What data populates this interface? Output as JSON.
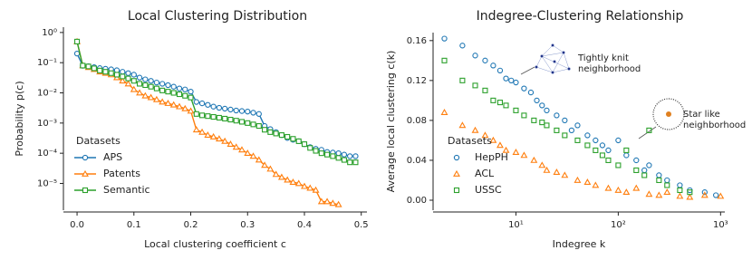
{
  "chart_data": [
    {
      "type": "line",
      "title": "Local Clustering Distribution",
      "x_label": "Local clustering coefficient c",
      "y_label": "Probability p(c)",
      "yscale": "log",
      "xlim": [
        -0.024,
        0.51
      ],
      "ylim": [
        1.3e-06,
        1.5
      ],
      "xticks": [
        {
          "value": 0,
          "label": "0.0"
        },
        0.1,
        0.2,
        0.3,
        0.4,
        0.5
      ],
      "yticks": [
        {
          "value": 1,
          "label": "10⁰"
        },
        {
          "value": 0.1,
          "label": "10⁻¹"
        },
        {
          "value": 0.01,
          "label": "10⁻²"
        },
        {
          "value": 0.001,
          "label": "10⁻³"
        },
        {
          "value": 0.0001,
          "label": "10⁻⁴"
        },
        {
          "value": 1e-05,
          "label": "10⁻⁵"
        }
      ],
      "legend_title": "Datasets",
      "legend": "lower left",
      "x": [
        0,
        0.01,
        0.02,
        0.03,
        0.04,
        0.05,
        0.06,
        0.07,
        0.08,
        0.09,
        0.1,
        0.11,
        0.12,
        0.13,
        0.14,
        0.15,
        0.16,
        0.17,
        0.18,
        0.19,
        0.2,
        0.21,
        0.22,
        0.23,
        0.24,
        0.25,
        0.26,
        0.27,
        0.28,
        0.29,
        0.3,
        0.31,
        0.32,
        0.33,
        0.34,
        0.35,
        0.36,
        0.37,
        0.38,
        0.39,
        0.4,
        0.41,
        0.42,
        0.43,
        0.44,
        0.45,
        0.46,
        0.47,
        0.48,
        0.49
      ],
      "series": [
        {
          "name": "APS",
          "color": "#1f77b4",
          "marker": "circle",
          "values": [
            0.2,
            0.079,
            0.076,
            0.071,
            0.066,
            0.063,
            0.06,
            0.056,
            0.05,
            0.045,
            0.04,
            0.032,
            0.028,
            0.025,
            0.022,
            0.02,
            0.018,
            0.016,
            0.014,
            0.013,
            0.011,
            0.005,
            0.0045,
            0.004,
            0.0035,
            0.0032,
            0.003,
            0.0028,
            0.0026,
            0.0025,
            0.0024,
            0.0022,
            0.002,
            0.0008,
            0.00063,
            0.0005,
            0.0004,
            0.00032,
            0.00028,
            0.00025,
            0.0002,
            0.00016,
            0.00014,
            0.00013,
            0.00011,
            0.000105,
            0.0001,
            9e-05,
            8e-05,
            8e-05
          ]
        },
        {
          "name": "Patents",
          "color": "#ff7f0e",
          "marker": "triangle",
          "values": [
            0.5,
            0.08,
            0.07,
            0.06,
            0.05,
            0.045,
            0.04,
            0.032,
            0.025,
            0.02,
            0.013,
            0.01,
            0.008,
            0.007,
            0.006,
            0.005,
            0.0045,
            0.004,
            0.0035,
            0.003,
            0.0025,
            0.0006,
            0.0005,
            0.0004,
            0.00035,
            0.0003,
            0.00025,
            0.0002,
            0.00016,
            0.00013,
            0.0001,
            8e-05,
            6e-05,
            4e-05,
            3e-05,
            2e-05,
            1.6e-05,
            1.3e-05,
            1.1e-05,
            1e-05,
            8e-06,
            7e-06,
            6e-06,
            2.5e-06,
            2.5e-06,
            2.2e-06,
            2e-06,
            null,
            null,
            null
          ]
        },
        {
          "name": "Semantic",
          "color": "#2ca02c",
          "marker": "square",
          "values": [
            0.5,
            0.08,
            0.075,
            0.065,
            0.055,
            0.05,
            0.045,
            0.04,
            0.035,
            0.03,
            0.025,
            0.02,
            0.018,
            0.016,
            0.014,
            0.012,
            0.011,
            0.01,
            0.009,
            0.008,
            0.007,
            0.002,
            0.0018,
            0.0017,
            0.0016,
            0.0015,
            0.0014,
            0.0013,
            0.0012,
            0.0011,
            0.001,
            0.0009,
            0.0008,
            0.0006,
            0.0005,
            0.00045,
            0.0004,
            0.00035,
            0.0003,
            0.00025,
            0.0002,
            0.00015,
            0.00012,
            0.0001,
            9e-05,
            8e-05,
            7e-05,
            6e-05,
            5e-05,
            5e-05
          ]
        }
      ]
    },
    {
      "type": "scatter",
      "title": "Indegree-Clustering Relationship",
      "x_label": "Indegree k",
      "y_label": "Average local clustering c(k)",
      "xscale": "log",
      "xlim": [
        1.55,
        1100
      ],
      "ylim": [
        -0.01,
        0.168
      ],
      "xticks": [
        {
          "value": 10,
          "label": "10¹"
        },
        {
          "value": 100,
          "label": "10²"
        },
        {
          "value": 1000,
          "label": "10³"
        }
      ],
      "yticks": [
        {
          "value": 0,
          "label": "0.00"
        },
        {
          "value": 0.04,
          "label": "0.04"
        },
        {
          "value": 0.08,
          "label": "0.08"
        },
        {
          "value": 0.12,
          "label": "0.12"
        },
        {
          "value": 0.16,
          "label": "0.16"
        }
      ],
      "legend_title": "Datasets",
      "legend": "lower left",
      "annotations": [
        [
          "Tightly knit",
          "neighborhood"
        ],
        [
          "Star like",
          "neighborhood"
        ]
      ],
      "series": [
        {
          "name": "HepPH",
          "color": "#1f77b4",
          "marker": "circle",
          "x": [
            2,
            3,
            4,
            5,
            6,
            7,
            8,
            9,
            10,
            12,
            14,
            16,
            18,
            20,
            25,
            30,
            35,
            40,
            50,
            60,
            70,
            80,
            100,
            120,
            150,
            180,
            200,
            250,
            300,
            400,
            500,
            700,
            900
          ],
          "values": [
            0.162,
            0.155,
            0.145,
            0.14,
            0.135,
            0.13,
            0.122,
            0.12,
            0.118,
            0.112,
            0.108,
            0.1,
            0.095,
            0.09,
            0.085,
            0.08,
            0.07,
            0.075,
            0.065,
            0.06,
            0.055,
            0.05,
            0.06,
            0.045,
            0.04,
            0.03,
            0.035,
            0.025,
            0.02,
            0.015,
            0.01,
            0.008,
            0.005
          ]
        },
        {
          "name": "ACL",
          "color": "#ff7f0e",
          "marker": "triangle",
          "x": [
            2,
            3,
            4,
            5,
            6,
            7,
            8,
            10,
            12,
            15,
            18,
            20,
            25,
            30,
            40,
            50,
            60,
            80,
            100,
            120,
            150,
            200,
            250,
            300,
            400,
            500,
            700,
            1000
          ],
          "values": [
            0.088,
            0.075,
            0.07,
            0.065,
            0.06,
            0.055,
            0.05,
            0.048,
            0.045,
            0.04,
            0.035,
            0.03,
            0.028,
            0.025,
            0.02,
            0.018,
            0.015,
            0.012,
            0.01,
            0.008,
            0.012,
            0.006,
            0.005,
            0.008,
            0.004,
            0.003,
            0.005,
            0.004
          ]
        },
        {
          "name": "USSC",
          "color": "#2ca02c",
          "marker": "square",
          "x": [
            2,
            3,
            4,
            5,
            6,
            7,
            8,
            10,
            12,
            15,
            18,
            20,
            25,
            30,
            40,
            50,
            60,
            70,
            80,
            100,
            120,
            150,
            180,
            200,
            250,
            300,
            400,
            500
          ],
          "values": [
            0.14,
            0.12,
            0.115,
            0.11,
            0.1,
            0.098,
            0.095,
            0.09,
            0.085,
            0.08,
            0.078,
            0.075,
            0.07,
            0.065,
            0.06,
            0.055,
            0.05,
            0.045,
            0.04,
            0.035,
            0.05,
            0.03,
            0.025,
            0.07,
            0.02,
            0.015,
            0.01,
            0.008
          ]
        }
      ]
    }
  ]
}
